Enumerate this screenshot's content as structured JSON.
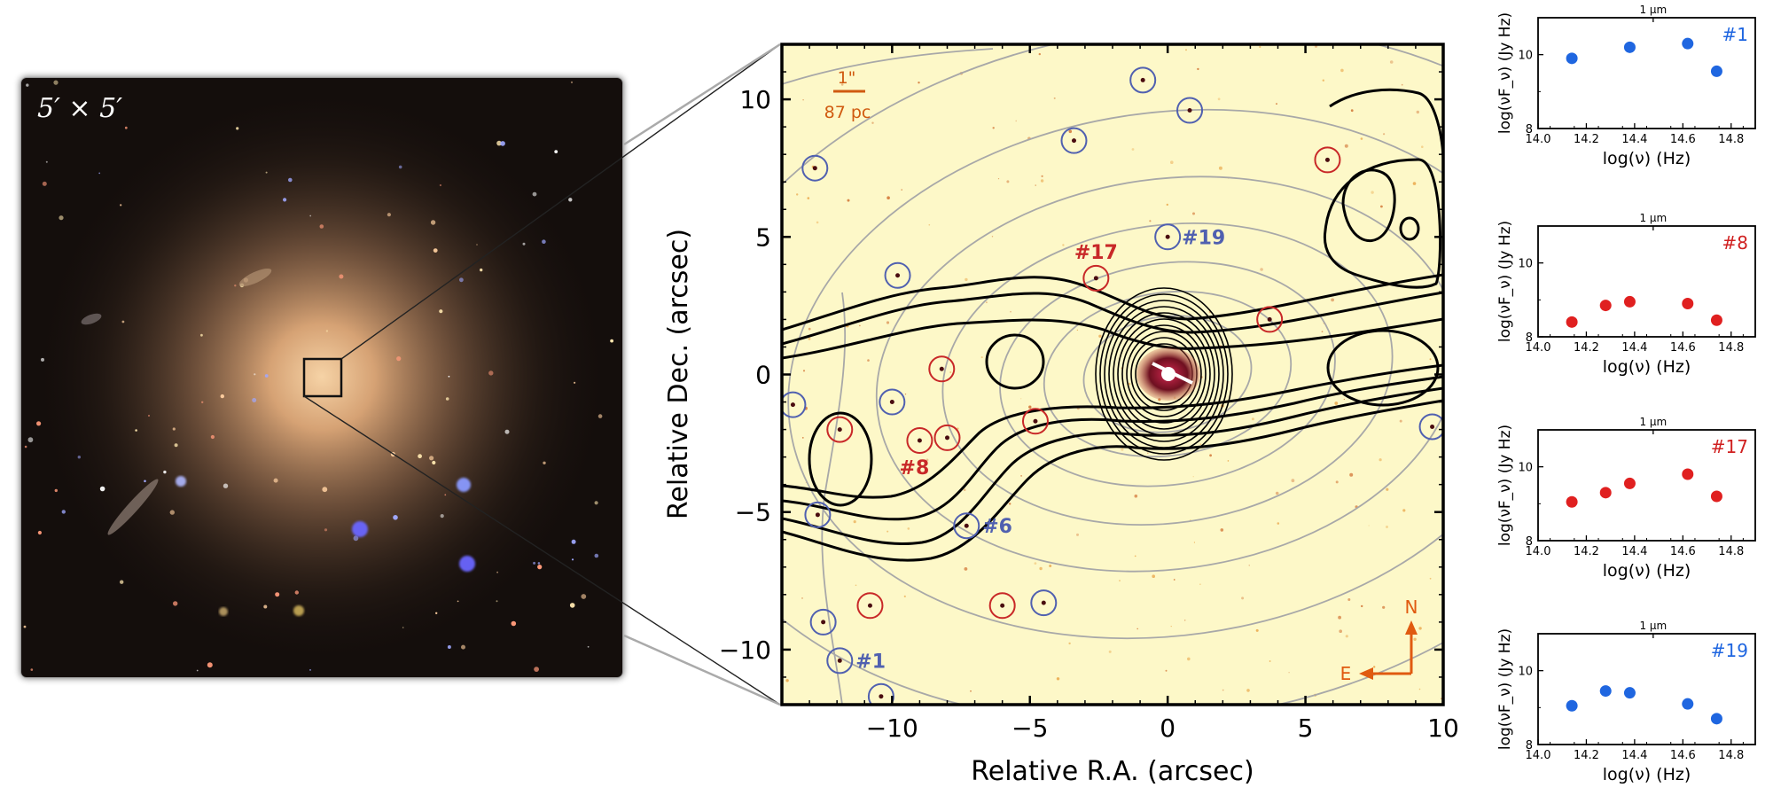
{
  "optical_panel": {
    "scale_label": "5′ × 5′"
  },
  "main_map": {
    "xlabel": "Relative R.A. (arcsec)",
    "ylabel": "Relative Dec. (arcsec)",
    "xlim": [
      -14,
      10
    ],
    "ylim": [
      -12,
      12
    ],
    "xticks": [
      "−10",
      "−5",
      "0",
      "5",
      "10"
    ],
    "xtick_values": [
      -10,
      -5,
      0,
      5,
      10
    ],
    "yticks": [
      "−10",
      "−5",
      "0",
      "5",
      "10"
    ],
    "ytick_values": [
      -10,
      -5,
      0,
      5,
      10
    ],
    "scalebar": {
      "angular": "1\"",
      "physical": "87 pc"
    },
    "compass": {
      "north": "N",
      "east": "E"
    },
    "colors": {
      "red_source": "#c82828",
      "blue_source": "#5060b0",
      "scalebar": "#d05a10",
      "compass": "#e05a10",
      "field": "#fdf8c8"
    },
    "sources": [
      {
        "x": -11.9,
        "y": -10.4,
        "class": "blue",
        "label": "#1"
      },
      {
        "x": -9.0,
        "y": -2.4,
        "class": "red",
        "label": "#8"
      },
      {
        "x": -7.3,
        "y": -5.5,
        "class": "blue",
        "label": "#6"
      },
      {
        "x": -2.6,
        "y": 3.5,
        "class": "red",
        "label": "#17"
      },
      {
        "x": 0.0,
        "y": 5.0,
        "class": "blue",
        "label": "#19"
      },
      {
        "x": -13.6,
        "y": -1.1,
        "class": "blue",
        "label": ""
      },
      {
        "x": -11.9,
        "y": -2.0,
        "class": "red",
        "label": ""
      },
      {
        "x": -10.0,
        "y": -1.0,
        "class": "blue",
        "label": ""
      },
      {
        "x": -8.2,
        "y": 0.2,
        "class": "red",
        "label": ""
      },
      {
        "x": -8.0,
        "y": -2.3,
        "class": "red",
        "label": ""
      },
      {
        "x": -12.8,
        "y": 7.5,
        "class": "blue",
        "label": ""
      },
      {
        "x": -9.8,
        "y": 3.6,
        "class": "blue",
        "label": ""
      },
      {
        "x": -4.8,
        "y": -1.7,
        "class": "red",
        "label": ""
      },
      {
        "x": -12.7,
        "y": -5.1,
        "class": "blue",
        "label": ""
      },
      {
        "x": -12.5,
        "y": -9.0,
        "class": "blue",
        "label": ""
      },
      {
        "x": -10.8,
        "y": -8.4,
        "class": "red",
        "label": ""
      },
      {
        "x": -10.4,
        "y": -11.7,
        "class": "blue",
        "label": ""
      },
      {
        "x": -6.0,
        "y": -8.4,
        "class": "red",
        "label": ""
      },
      {
        "x": -4.5,
        "y": -8.3,
        "class": "blue",
        "label": ""
      },
      {
        "x": -3.4,
        "y": 8.5,
        "class": "blue",
        "label": ""
      },
      {
        "x": -0.9,
        "y": 10.7,
        "class": "blue",
        "label": ""
      },
      {
        "x": 0.8,
        "y": 9.6,
        "class": "blue",
        "label": ""
      },
      {
        "x": 3.7,
        "y": 2.0,
        "class": "red",
        "label": ""
      },
      {
        "x": 5.8,
        "y": 7.8,
        "class": "red",
        "label": ""
      },
      {
        "x": 9.6,
        "y": -1.9,
        "class": "blue",
        "label": ""
      }
    ]
  },
  "sed_panels": [
    {
      "label": "#1",
      "label_color": "#1f66e0",
      "point_color": "#1f66e0",
      "top_axis": "1 μm",
      "xlabel": "log(ν) (Hz)",
      "ylabel": "log(νF_ν) (Jy Hz)",
      "x": [
        14.14,
        14.38,
        14.62,
        14.74
      ],
      "y": [
        9.9,
        10.2,
        10.3,
        9.55
      ]
    },
    {
      "label": "#8",
      "label_color": "#d02020",
      "point_color": "#e02020",
      "top_axis": "1 μm",
      "xlabel": "log(ν) (Hz)",
      "ylabel": "log(νF_ν) (Jy Hz)",
      "x": [
        14.14,
        14.28,
        14.38,
        14.62,
        14.74
      ],
      "y": [
        8.4,
        8.85,
        8.95,
        8.9,
        8.45
      ]
    },
    {
      "label": "#17",
      "label_color": "#d02020",
      "point_color": "#e02020",
      "top_axis": "1 μm",
      "xlabel": "log(ν) (Hz)",
      "ylabel": "log(νF_ν) (Jy Hz)",
      "x": [
        14.14,
        14.28,
        14.38,
        14.62,
        14.74
      ],
      "y": [
        9.05,
        9.3,
        9.55,
        9.8,
        9.2
      ]
    },
    {
      "label": "#19",
      "label_color": "#1f66e0",
      "point_color": "#1f66e0",
      "top_axis": "1 μm",
      "xlabel": "log(ν) (Hz)",
      "ylabel": "log(νF_ν) (Jy Hz)",
      "x": [
        14.14,
        14.28,
        14.38,
        14.62,
        14.74
      ],
      "y": [
        9.05,
        9.45,
        9.4,
        9.1,
        8.7
      ]
    }
  ],
  "sed_axes": {
    "xlim": [
      14.0,
      14.9
    ],
    "ylim": [
      8,
      11
    ],
    "xticks": [
      "14.0",
      "14.2",
      "14.4",
      "14.6",
      "14.8"
    ],
    "xtick_values": [
      14.0,
      14.2,
      14.4,
      14.6,
      14.8
    ],
    "yticks": [
      "8",
      "10"
    ],
    "ytick_values": [
      8,
      10
    ]
  }
}
